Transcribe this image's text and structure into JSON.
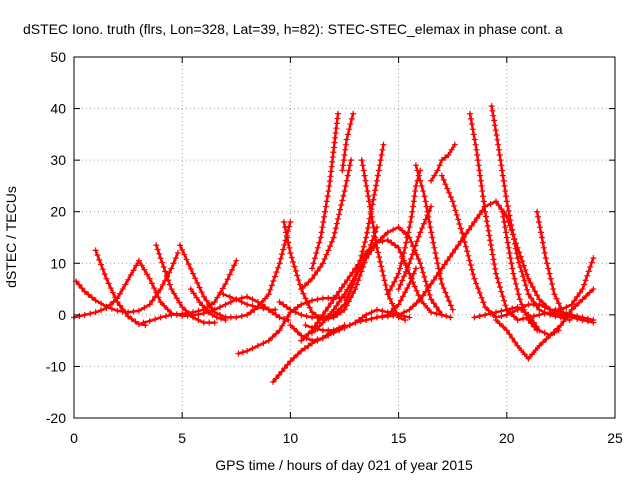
{
  "chart_data": {
    "type": "line",
    "title": "dSTEC Iono. truth (flrs, Lon=328, Lat=39, h=82): STEC-STEC_elemax in phase cont. a",
    "xlabel": "GPS time / hours of day 021 of year 2015",
    "ylabel": "dSTEC  / TECUs",
    "xlim": [
      0,
      25
    ],
    "ylim": [
      -20,
      50
    ],
    "x_ticks": [
      "0",
      "5",
      "10",
      "15",
      "20",
      "25"
    ],
    "y_ticks": [
      "-20",
      "-10",
      "0",
      "10",
      "20",
      "30",
      "40",
      "50"
    ],
    "grid": true,
    "marker": "+",
    "color": "#ff0000",
    "series": [
      {
        "x": [
          0,
          0.5,
          1,
          1.5,
          2,
          2.5,
          3,
          3.5,
          4,
          4.5,
          5,
          5.5,
          6,
          6.5,
          7,
          7.5,
          8,
          8.5,
          9,
          9.5,
          9.9
        ],
        "y": [
          -0.5,
          0,
          0.5,
          1.3,
          3.2,
          6.8,
          10.5,
          7,
          2.5,
          0.3,
          -0.2,
          -0.1,
          0.3,
          1,
          2,
          3,
          3.5,
          2.5,
          1,
          -0.5,
          -1
        ]
      },
      {
        "x": [
          0.1,
          0.5,
          1,
          1.5,
          2,
          2.5,
          3,
          3.5,
          4,
          4.5,
          4.8
        ],
        "y": [
          6.5,
          4.5,
          2.8,
          1.6,
          0.8,
          0.5,
          0.8,
          2,
          5,
          9,
          12
        ]
      },
      {
        "x": [
          1,
          1.5,
          2,
          2.5,
          3,
          3.3
        ],
        "y": [
          12.5,
          7,
          2.5,
          -0.3,
          -1.8,
          -2
        ]
      },
      {
        "x": [
          3.2,
          3.5,
          4,
          4.5,
          5,
          5.5,
          6,
          6.5,
          7,
          7.5
        ],
        "y": [
          -1.5,
          -1.2,
          -0.5,
          0,
          0.2,
          0.5,
          1,
          2.5,
          6,
          10.5
        ]
      },
      {
        "x": [
          3.8,
          4,
          4.5,
          5,
          5.5,
          6,
          6.5
        ],
        "y": [
          13.5,
          11,
          5,
          1.5,
          -0.5,
          -1.5,
          -1.5
        ]
      },
      {
        "x": [
          4.9,
          5.5,
          6,
          6.5,
          7,
          7.5,
          8,
          8.5,
          9,
          9.5,
          10
        ],
        "y": [
          13.5,
          8,
          3.5,
          0.5,
          -0.5,
          -0.5,
          0,
          1.5,
          4,
          10,
          18
        ]
      },
      {
        "x": [
          5.4,
          5.8,
          6.2,
          6.6,
          7
        ],
        "y": [
          5,
          2.5,
          0.5,
          -0.5,
          -1
        ]
      },
      {
        "x": [
          6.9,
          7.2,
          7.5,
          8,
          8.5,
          9,
          9.3
        ],
        "y": [
          4,
          3.5,
          3,
          2,
          1.5,
          1,
          1
        ]
      },
      {
        "x": [
          7.6,
          8,
          8.5,
          9,
          9.5,
          10,
          10.5,
          11,
          11.5,
          12,
          12.5
        ],
        "y": [
          -7.5,
          -7,
          -6,
          -5,
          -3,
          0.5,
          2,
          2.8,
          3.2,
          3.3,
          3.4
        ]
      },
      {
        "x": [
          9.2,
          9.6,
          10,
          10.5,
          11,
          11.5,
          12,
          12.5,
          13,
          13.5,
          14,
          14.5,
          15,
          15.5,
          15.8
        ],
        "y": [
          -13,
          -11,
          -9,
          -7,
          -5.5,
          -4.5,
          -3.5,
          -2.5,
          -1.5,
          -1,
          -0.5,
          0,
          2,
          6,
          9
        ]
      },
      {
        "x": [
          9.5,
          10,
          10.5,
          11,
          11.5,
          12,
          12.5,
          13,
          13.5,
          14,
          14.3
        ],
        "y": [
          2.5,
          1,
          0,
          -0.5,
          -0.5,
          0,
          2,
          7,
          15,
          26,
          33
        ]
      },
      {
        "x": [
          9.7,
          10,
          10.5,
          11,
          11.5,
          12,
          12.5,
          13,
          13.5,
          14
        ],
        "y": [
          18,
          12,
          5,
          0.5,
          -1,
          -0.5,
          1,
          5,
          11,
          17
        ]
      },
      {
        "x": [
          10,
          10.5,
          11,
          11.5,
          12,
          12.5
        ],
        "y": [
          -2,
          -4,
          -5,
          -4.5,
          -3,
          -2
        ]
      },
      {
        "x": [
          10.5,
          11,
          11.5,
          12,
          12.5,
          13,
          13.5,
          14,
          14.5,
          15,
          15.5,
          16,
          16.5,
          17
        ],
        "y": [
          -5,
          -3,
          0,
          3,
          6,
          9,
          12,
          14,
          14.5,
          13,
          8,
          3,
          0.5,
          0
        ]
      },
      {
        "x": [
          10.7,
          11,
          11.5,
          12,
          12.5,
          13,
          13.5,
          14,
          14.5,
          15,
          15.5
        ],
        "y": [
          -2,
          -2.5,
          -3,
          -3,
          -2.5,
          -1.5,
          0,
          1,
          0.5,
          0,
          -0.5
        ]
      },
      {
        "x": [
          10.5,
          11,
          11.5,
          12,
          12.5,
          12.8
        ],
        "y": [
          5,
          7,
          10,
          15,
          24,
          30
        ]
      },
      {
        "x": [
          11,
          11.5,
          12,
          12.5,
          13,
          13.5,
          14,
          14.5,
          15,
          15.5,
          16,
          16.5,
          17,
          17.4
        ],
        "y": [
          -3.5,
          -1.5,
          1,
          4,
          7.5,
          11,
          14,
          16,
          17,
          15,
          10,
          3,
          0,
          -0.5
        ]
      },
      {
        "x": [
          11,
          11.4,
          11.8,
          12.2
        ],
        "y": [
          9,
          15,
          25,
          39
        ]
      },
      {
        "x": [
          12.4,
          12.6,
          12.9
        ],
        "y": [
          28,
          34,
          39
        ]
      },
      {
        "x": [
          13.3,
          13.6,
          14,
          14.5,
          15,
          15.3
        ],
        "y": [
          30,
          23,
          13,
          4,
          -0.5,
          -1
        ]
      },
      {
        "x": [
          13.5,
          14,
          14.5,
          15,
          15.5,
          16,
          16.5,
          17,
          17.5,
          18,
          18.5,
          19,
          19.5,
          20,
          20.5,
          21,
          21.5,
          22,
          22.5,
          23,
          23.5,
          24
        ],
        "y": [
          -1,
          -0.5,
          -0.3,
          0,
          1,
          3,
          6,
          9,
          12,
          15,
          18,
          21,
          22,
          19,
          13,
          7,
          3,
          1,
          1,
          2,
          5,
          11
        ]
      },
      {
        "x": [
          14.5,
          15,
          15.3,
          15.6,
          15.8,
          16
        ],
        "y": [
          4,
          8,
          13,
          19,
          25,
          28
        ]
      },
      {
        "x": [
          15,
          15.5,
          16,
          16.5
        ],
        "y": [
          5,
          10,
          16,
          21
        ]
      },
      {
        "x": [
          15.8,
          16.2,
          16.6,
          17,
          17.5
        ],
        "y": [
          29,
          23,
          14,
          6,
          1
        ]
      },
      {
        "x": [
          16.5,
          16.8,
          17,
          17.3,
          17.6
        ],
        "y": [
          26,
          28,
          30,
          31,
          33
        ]
      },
      {
        "x": [
          17,
          17.5,
          18,
          18.5,
          19,
          19.5,
          20,
          20.5,
          21,
          21.5,
          22,
          22.5,
          23,
          23.5,
          24
        ],
        "y": [
          27,
          22,
          15,
          7,
          1.5,
          -0.5,
          0,
          1,
          2,
          2,
          1,
          0.5,
          0,
          -0.5,
          -1
        ]
      },
      {
        "x": [
          18.3,
          18.6,
          19,
          19.5,
          20,
          20.5,
          21,
          21.5,
          22,
          22.5,
          23,
          23.5
        ],
        "y": [
          39,
          32,
          20,
          8,
          1,
          -1,
          -0.5,
          0,
          0.5,
          0,
          -0.5,
          -1
        ]
      },
      {
        "x": [
          18.5,
          19,
          19.5,
          20,
          20.5,
          21,
          21.5,
          22,
          22.5,
          23,
          23.5,
          24
        ],
        "y": [
          -0.5,
          0,
          0.5,
          1,
          1.5,
          0,
          -3,
          -4,
          -2,
          1,
          3,
          5
        ]
      },
      {
        "x": [
          19.3,
          19.6,
          20,
          20.5,
          21,
          21.5,
          22,
          22.5,
          22.9
        ],
        "y": [
          40.5,
          33,
          22,
          11,
          4,
          1,
          0,
          -0.5,
          -1
        ]
      },
      {
        "x": [
          19.5,
          20,
          20.5,
          21,
          21.5,
          22,
          22.4
        ],
        "y": [
          -1,
          -3,
          -6,
          -8.5,
          -6,
          -4,
          -3
        ]
      },
      {
        "x": [
          19.8,
          20,
          20.3,
          20.6,
          21,
          21.4
        ],
        "y": [
          20,
          15,
          8,
          3,
          -1,
          -3
        ]
      },
      {
        "x": [
          21.4,
          21.8,
          22.2,
          22.6,
          23,
          23.5,
          24
        ],
        "y": [
          20,
          11,
          4,
          0.5,
          -0.5,
          -1,
          -1.5
        ]
      }
    ]
  }
}
